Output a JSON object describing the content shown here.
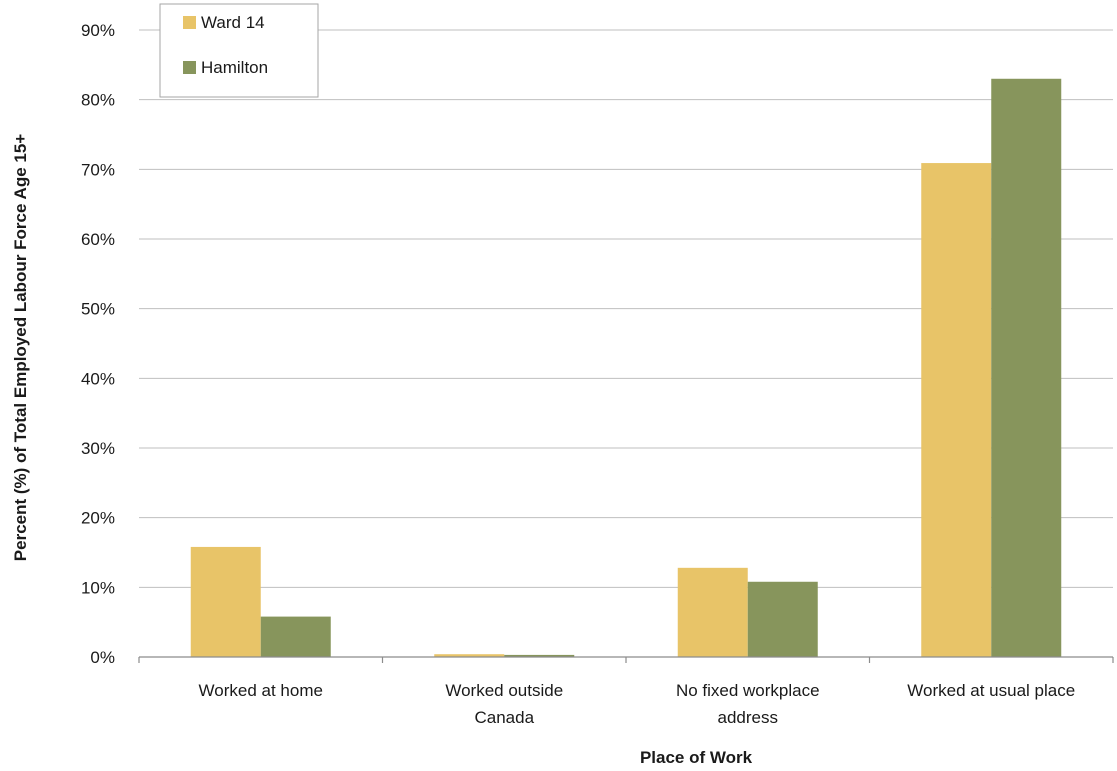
{
  "chart_data": {
    "type": "bar",
    "categories": [
      [
        "Worked at home"
      ],
      [
        "Worked outside",
        "Canada"
      ],
      [
        "No fixed workplace",
        "address"
      ],
      [
        "Worked at usual place"
      ]
    ],
    "series": [
      {
        "name": "Ward 14",
        "color": "#E8C468",
        "values": [
          15.8,
          0.4,
          12.8,
          70.9
        ]
      },
      {
        "name": "Hamilton",
        "color": "#87955C",
        "values": [
          5.8,
          0.3,
          10.8,
          83.0
        ]
      }
    ],
    "title": "",
    "xlabel": "Place of Work",
    "ylabel": "Percent (%) of Total Employed Labour Force Age 15+",
    "ylim": [
      0,
      90
    ],
    "yticks": [
      0,
      10,
      20,
      30,
      40,
      50,
      60,
      70,
      80,
      90
    ],
    "ytick_suffix": "%",
    "grid": true,
    "legend_position": "top-left",
    "gridline_color": "#bfbfbf",
    "axis_color": "#8c8c8c"
  }
}
